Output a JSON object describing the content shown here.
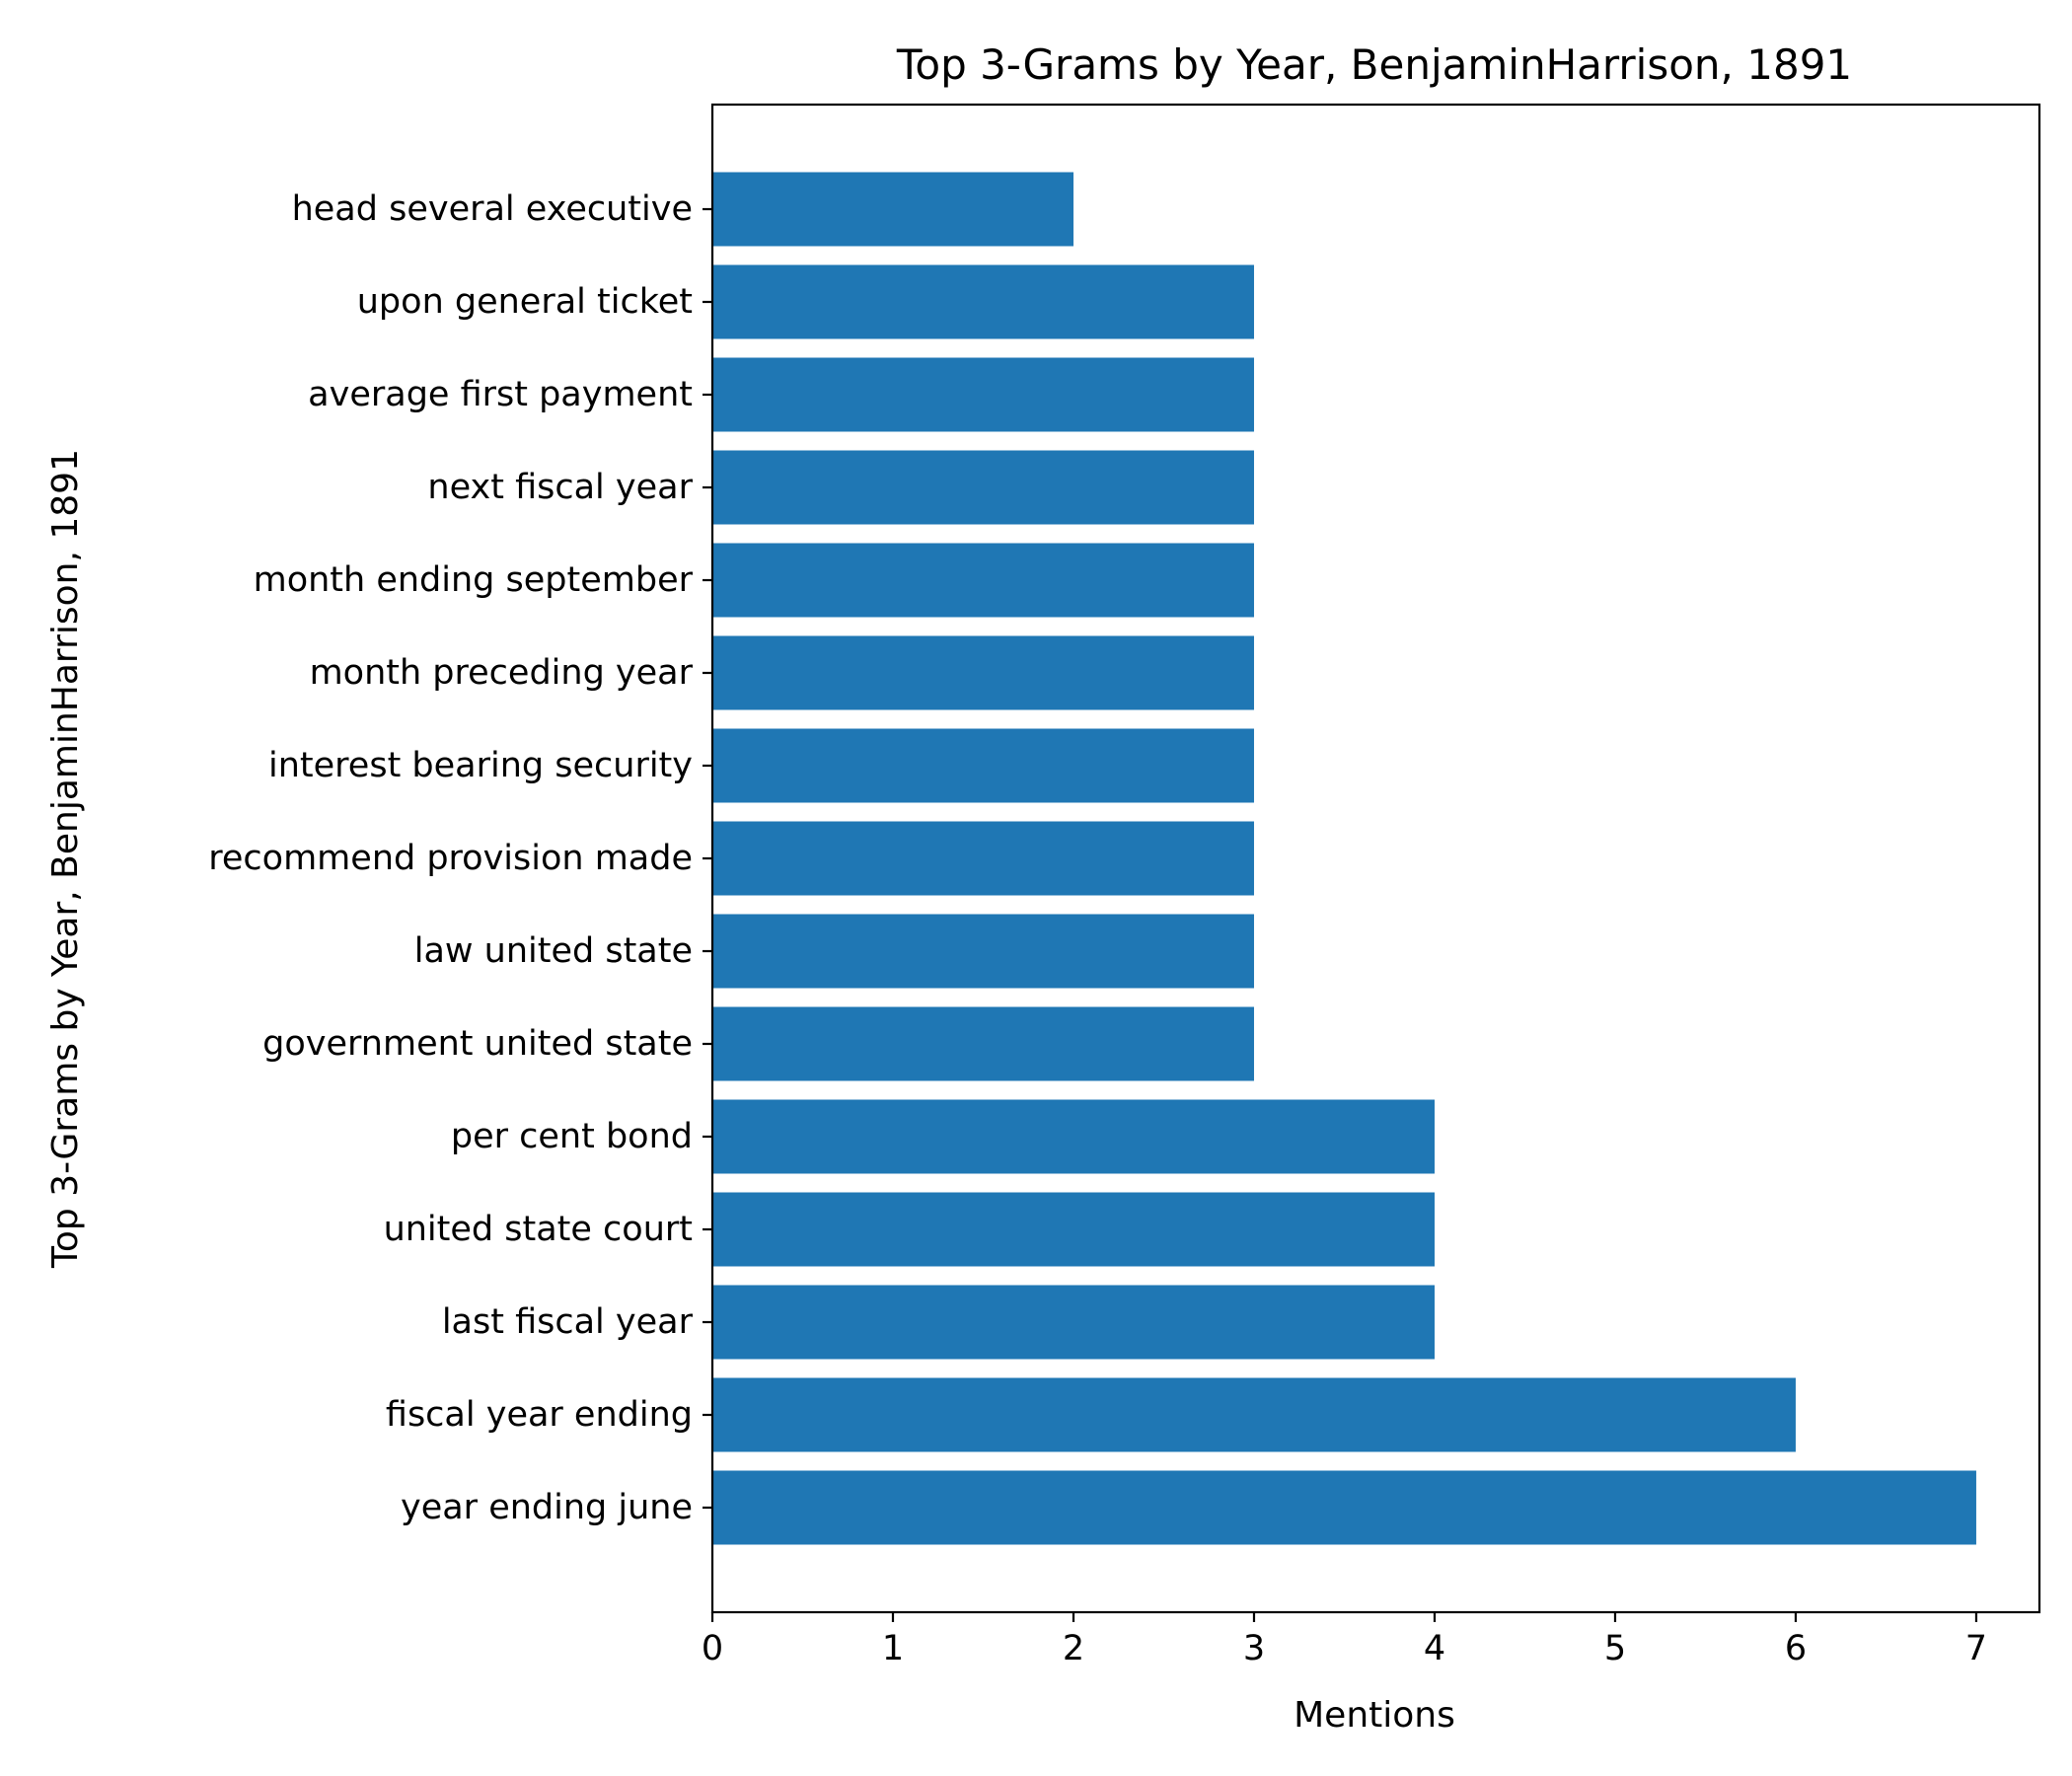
{
  "chart_data": {
    "type": "bar",
    "orientation": "horizontal",
    "title": "Top 3-Grams by Year, BenjaminHarrison, 1891",
    "xlabel": "Mentions",
    "ylabel": "Top 3-Grams by Year, BenjaminHarrison, 1891",
    "categories": [
      "year ending june",
      "fiscal year ending",
      "last fiscal year",
      "united state court",
      "per cent bond",
      "government united state",
      "law united state",
      "recommend provision made",
      "interest bearing security",
      "month preceding year",
      "month ending september",
      "next fiscal year",
      "average first payment",
      "upon general ticket",
      "head several executive"
    ],
    "values": [
      7,
      6,
      4,
      4,
      4,
      3,
      3,
      3,
      3,
      3,
      3,
      3,
      3,
      3,
      2
    ],
    "xlim": [
      0,
      7.35
    ],
    "xticks": [
      "0",
      "1",
      "2",
      "3",
      "4",
      "5",
      "6",
      "7"
    ],
    "grid": false,
    "legend": false,
    "colors": {
      "bar": "#1f77b4",
      "axis": "#000000",
      "background": "#ffffff"
    }
  }
}
